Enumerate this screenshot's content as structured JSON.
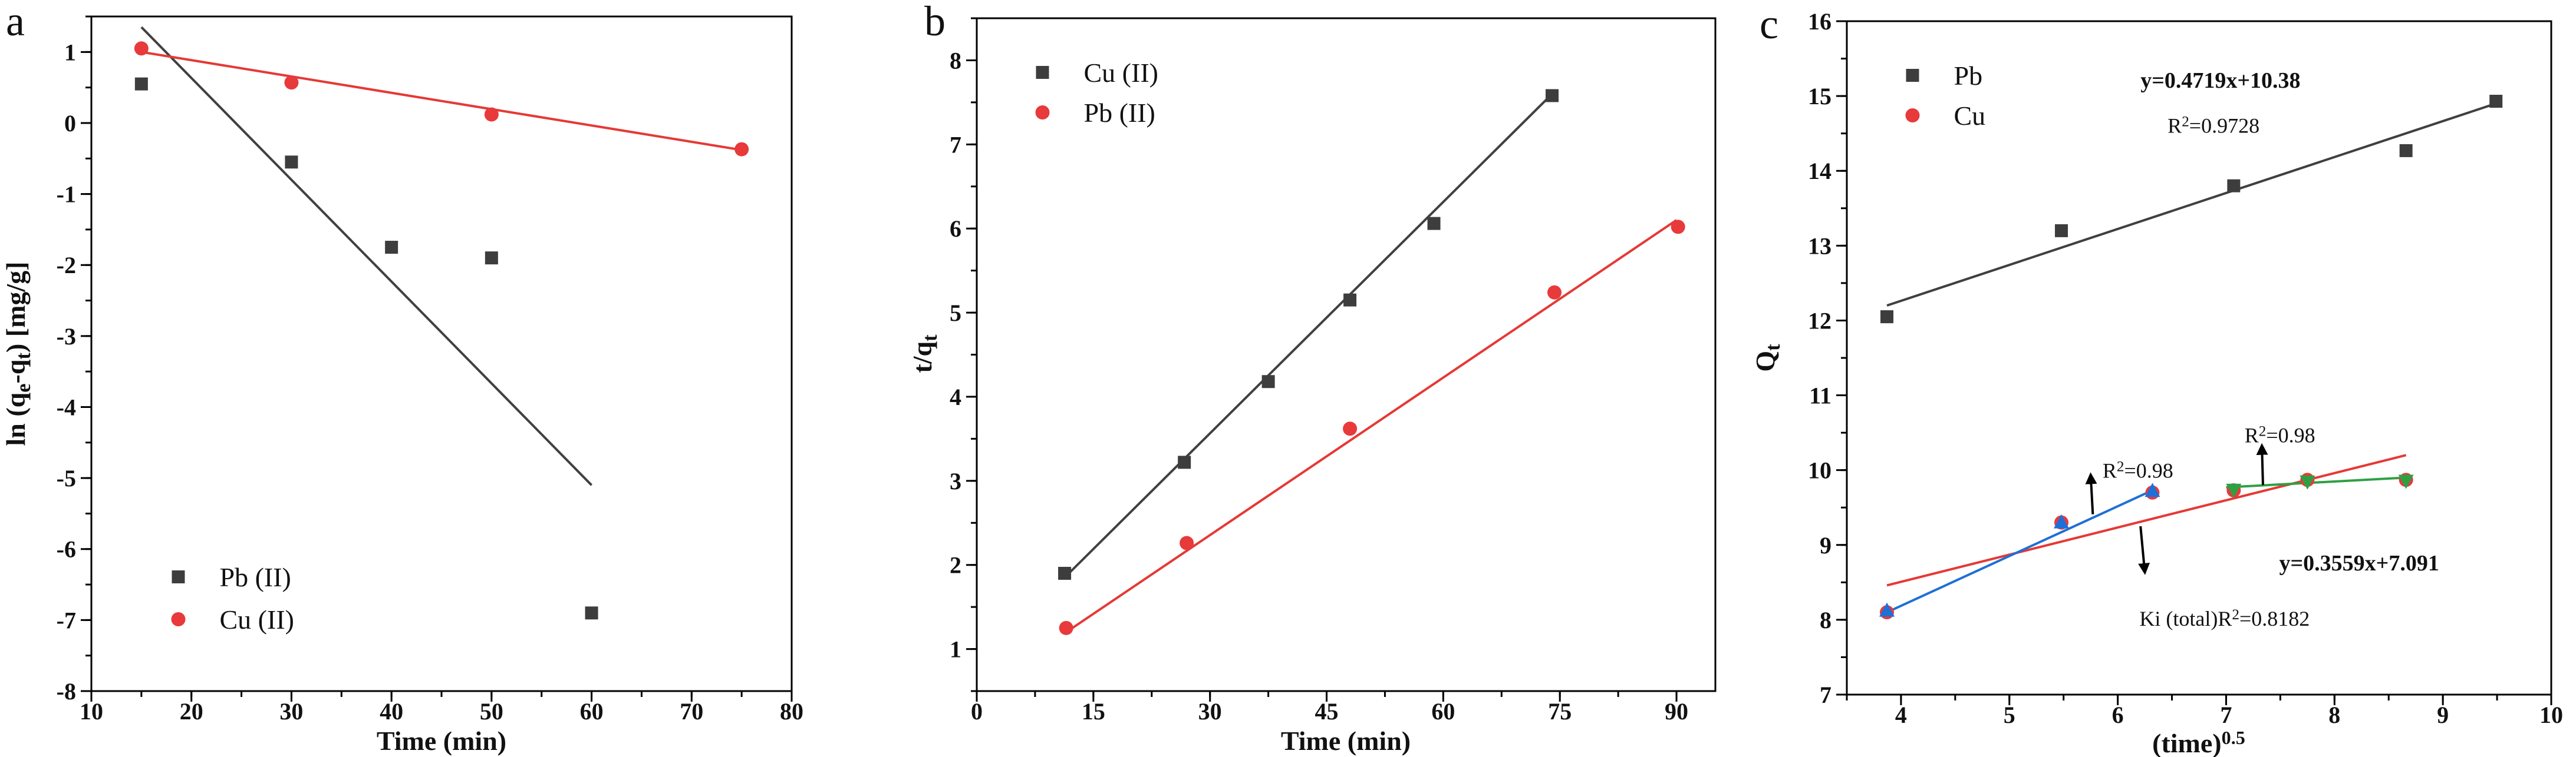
{
  "chart_data": [
    {
      "panel_label": "a",
      "type": "scatter",
      "xlabel": [
        {
          "t": "Time (min)"
        }
      ],
      "ylabel": [
        {
          "t": "ln (q"
        },
        {
          "t": "e",
          "sub": true
        },
        {
          "t": "-q"
        },
        {
          "t": "t",
          "sub": true
        },
        {
          "t": ") [mg/g]"
        }
      ],
      "xlim": [
        10,
        80
      ],
      "ylim": [
        -8,
        1.5
      ],
      "xticks": [
        10,
        20,
        30,
        40,
        50,
        60,
        70,
        80
      ],
      "xtick_labels": [
        "10",
        "20",
        "30",
        "40",
        "50",
        "60",
        "70",
        "80"
      ],
      "yticks": [
        -8,
        -7,
        -6,
        -5,
        -4,
        -3,
        -2,
        -1,
        0,
        1
      ],
      "ytick_labels": [
        "-8",
        "-7",
        "-6",
        "-5",
        "-4",
        "-3",
        "-2",
        "-1",
        "0",
        "1"
      ],
      "xminor": 5,
      "yminor": 0.5,
      "legend": "bottom-left",
      "series": [
        {
          "name": "Pb (II)",
          "marker": "square",
          "color": "#3d3d3d",
          "x": [
            15,
            30,
            40,
            50,
            60
          ],
          "y": [
            0.55,
            -0.55,
            -1.75,
            -1.9,
            -6.9
          ],
          "fit": {
            "x": [
              15,
              60
            ],
            "y": [
              1.35,
              -5.1
            ],
            "color": "#404040"
          }
        },
        {
          "name": "Cu (II)",
          "marker": "circle",
          "color": "#e8393b",
          "x": [
            15,
            30,
            50,
            75
          ],
          "y": [
            1.05,
            0.57,
            0.12,
            -0.37
          ],
          "fit": {
            "x": [
              15,
              75
            ],
            "y": [
              1.0,
              -0.38
            ],
            "color": "#e53935"
          }
        }
      ]
    },
    {
      "panel_label": "b",
      "type": "scatter",
      "xlabel": [
        {
          "t": "Time (min)"
        }
      ],
      "ylabel": [
        {
          "t": "t/q"
        },
        {
          "t": "t",
          "sub": true
        }
      ],
      "xlim": [
        0,
        95
      ],
      "ylim": [
        0.5,
        8.5
      ],
      "xticks": [
        0,
        15,
        30,
        45,
        60,
        75,
        90
      ],
      "xtick_labels": [
        "0",
        "15",
        "30",
        "45",
        "60",
        "75",
        "90"
      ],
      "yticks": [
        1,
        2,
        3,
        4,
        5,
        6,
        7,
        8
      ],
      "ytick_labels": [
        "1",
        "2",
        "3",
        "4",
        "5",
        "6",
        "7",
        "8"
      ],
      "xminor": 7.5,
      "yminor": 0.5,
      "legend": "top-left",
      "series": [
        {
          "name": "Cu (II)",
          "marker": "square",
          "color": "#3d3d3d",
          "x": [
            11.3,
            26.7,
            37.5,
            48,
            58.8,
            74
          ],
          "y": [
            1.9,
            3.22,
            4.18,
            5.15,
            6.06,
            7.58
          ],
          "fit": {
            "x": [
              11.3,
              74
            ],
            "y": [
              1.85,
              7.6
            ],
            "color": "#404040"
          }
        },
        {
          "name": "Pb (II)",
          "marker": "circle",
          "color": "#e8393b",
          "x": [
            11.5,
            27,
            48,
            74.3,
            90.2
          ],
          "y": [
            1.25,
            2.26,
            3.62,
            5.24,
            6.02
          ],
          "fit": {
            "x": [
              11.5,
              90
            ],
            "y": [
              1.2,
              6.1
            ],
            "color": "#e53935"
          }
        }
      ]
    },
    {
      "panel_label": "c",
      "type": "scatter",
      "xlabel": [
        {
          "t": "(time)"
        },
        {
          "t": "0.5",
          "sup": true
        }
      ],
      "ylabel": [
        {
          "t": "Q"
        },
        {
          "t": "t",
          "sub": true
        }
      ],
      "xlim": [
        3.5,
        10
      ],
      "ylim": [
        7,
        16
      ],
      "xticks": [
        4,
        5,
        6,
        7,
        8,
        9,
        10
      ],
      "xtick_labels": [
        "4",
        "5",
        "6",
        "7",
        "8",
        "9",
        "10"
      ],
      "yticks": [
        7,
        8,
        9,
        10,
        11,
        12,
        13,
        14,
        15,
        16
      ],
      "ytick_labels": [
        "7",
        "8",
        "9",
        "10",
        "11",
        "12",
        "13",
        "14",
        "15",
        "16"
      ],
      "xminor": 0.5,
      "yminor": 0.5,
      "legend": "top-left",
      "series": [
        {
          "name": "Pb",
          "marker": "square",
          "color": "#3d3d3d",
          "x": [
            3.87,
            5.48,
            7.07,
            8.66,
            9.49
          ],
          "y": [
            12.05,
            13.2,
            13.8,
            14.27,
            14.93
          ],
          "fit": {
            "x": [
              3.87,
              9.49
            ],
            "y": [
              12.2,
              14.9
            ],
            "color": "#404040"
          }
        },
        {
          "name": "Cu",
          "marker": "circle",
          "color": "#e8393b",
          "x": [
            3.87,
            5.48,
            6.32,
            7.07,
            7.75,
            8.66
          ],
          "y": [
            8.1,
            9.3,
            9.7,
            9.73,
            9.87,
            9.87
          ],
          "fit": {
            "x": [
              3.87,
              8.66
            ],
            "y": [
              8.46,
              10.2
            ],
            "color": "#e53935"
          }
        },
        {
          "marker": "triangle-up",
          "color": "#1f6fd6",
          "legend": false,
          "x": [
            3.87,
            5.48,
            6.32
          ],
          "y": [
            8.12,
            9.3,
            9.72
          ],
          "fit": {
            "x": [
              3.87,
              6.32
            ],
            "y": [
              8.1,
              9.73
            ],
            "color": "#1f6fd6"
          }
        },
        {
          "marker": "triangle-down",
          "color": "#2ea043",
          "legend": false,
          "x": [
            7.07,
            7.75,
            8.66
          ],
          "y": [
            9.74,
            9.85,
            9.86
          ],
          "fit": {
            "x": [
              7.0,
              8.66
            ],
            "y": [
              9.77,
              9.9
            ],
            "color": "#2ea043"
          }
        }
      ],
      "annotations": [
        {
          "x": 6.21,
          "y": 15.11,
          "bold": true,
          "parts": [
            {
              "t": "y=0.4719x+10.38"
            }
          ]
        },
        {
          "x": 6.46,
          "y": 14.51,
          "parts": [
            {
              "t": "R"
            },
            {
              "t": "2",
              "sup": true
            },
            {
              "t": "=0.9728"
            }
          ]
        },
        {
          "x": 5.86,
          "y": 9.9,
          "parts": [
            {
              "t": "R"
            },
            {
              "t": "2",
              "sup": true
            },
            {
              "t": "=0.98"
            }
          ]
        },
        {
          "x": 7.17,
          "y": 10.37,
          "parts": [
            {
              "t": "R"
            },
            {
              "t": "2",
              "sup": true
            },
            {
              "t": "=0.98"
            }
          ]
        },
        {
          "x": 7.49,
          "y": 8.66,
          "bold": true,
          "parts": [
            {
              "t": "y=0.3559x+7.091"
            }
          ]
        },
        {
          "x": 6.2,
          "y": 7.92,
          "parts": [
            {
              "t": "Ki (total)R"
            },
            {
              "t": "2",
              "sup": true
            },
            {
              "t": "=0.8182"
            }
          ]
        }
      ],
      "arrows": [
        {
          "from": [
            5.77,
            9.41
          ],
          "to": [
            5.75,
            9.94
          ]
        },
        {
          "from": [
            7.34,
            9.8
          ],
          "to": [
            7.33,
            10.33
          ]
        },
        {
          "from": [
            6.21,
            9.25
          ],
          "to": [
            6.25,
            8.63
          ]
        }
      ]
    }
  ]
}
